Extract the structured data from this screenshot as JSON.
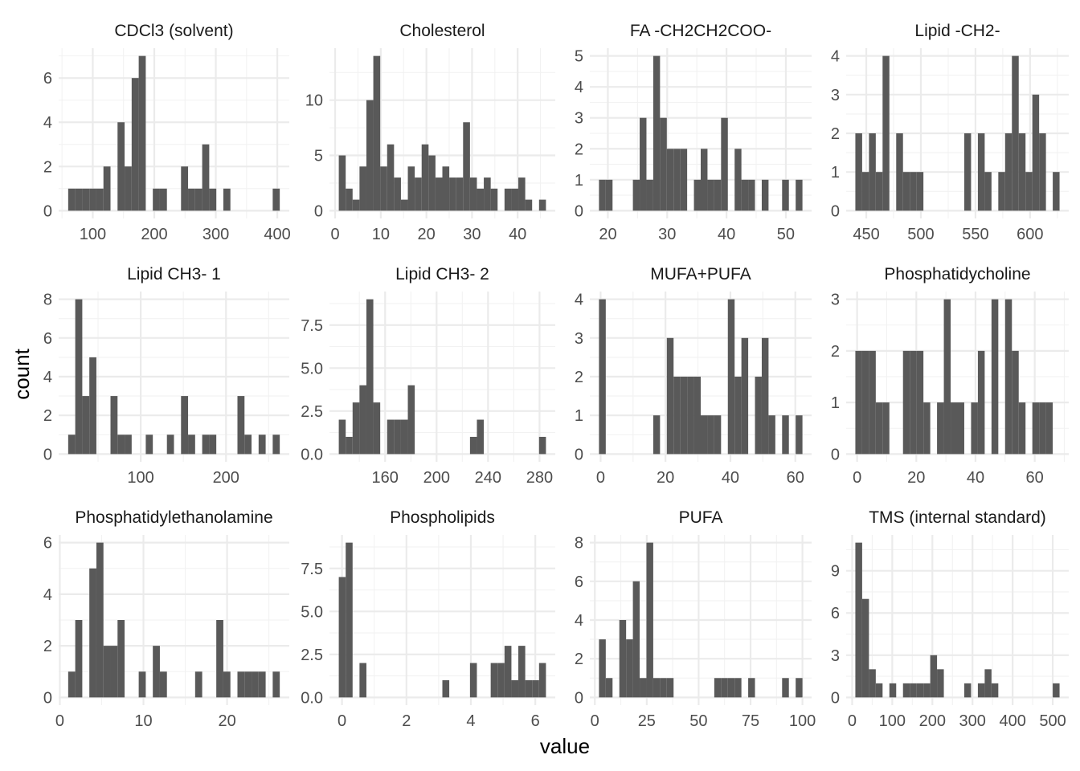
{
  "chart_data": {
    "type": "bar",
    "subtype": "faceted-histogram",
    "bins": 30,
    "xlabel": "value",
    "ylabel": "count",
    "grid": true,
    "scales": "free",
    "bar_color": "#595959",
    "layout": {
      "columns": 4,
      "rows": 3
    },
    "facets": [
      {
        "title": "CDCl3 (solvent)",
        "xrange": [
          60,
          404
        ],
        "xticks": [
          100,
          200,
          300,
          400
        ],
        "xticklabels": [
          "100",
          "200",
          "300",
          "400"
        ],
        "yticks": [
          0,
          2,
          4,
          6
        ],
        "yticklabels": [
          "0",
          "2",
          "4",
          "6"
        ],
        "ymax": 7,
        "counts": [
          1,
          1,
          1,
          1,
          1,
          2,
          0,
          4,
          2,
          6,
          7,
          0,
          1,
          1,
          0,
          0,
          2,
          1,
          1,
          3,
          1,
          0,
          1,
          0,
          0,
          0,
          0,
          0,
          0,
          1
        ]
      },
      {
        "title": "Cholesterol",
        "xrange": [
          0.8,
          46.2
        ],
        "xticks": [
          0,
          10,
          20,
          30,
          40
        ],
        "xticklabels": [
          "0",
          "10",
          "20",
          "30",
          "40"
        ],
        "yticks": [
          0,
          5,
          10
        ],
        "yticklabels": [
          "0",
          "5",
          "10"
        ],
        "ymax": 14,
        "counts": [
          5,
          2,
          1,
          4,
          10,
          14,
          4,
          6,
          3,
          1,
          4,
          3,
          6,
          5,
          3,
          4,
          3,
          3,
          8,
          3,
          2,
          3,
          2,
          0,
          2,
          2,
          3,
          1,
          0,
          1
        ]
      },
      {
        "title": "FA -CH2CH2COO-",
        "xrange": [
          18.5,
          52.8
        ],
        "xticks": [
          20,
          30,
          40,
          50
        ],
        "xticklabels": [
          "20",
          "30",
          "40",
          "50"
        ],
        "yticks": [
          0,
          1,
          2,
          3,
          4,
          5
        ],
        "yticklabels": [
          "0",
          "1",
          "2",
          "3",
          "4",
          "5"
        ],
        "ymax": 5,
        "counts": [
          1,
          1,
          0,
          0,
          0,
          1,
          3,
          1,
          5,
          3,
          2,
          2,
          2,
          0,
          1,
          2,
          1,
          1,
          3,
          0,
          2,
          1,
          1,
          0,
          1,
          0,
          0,
          1,
          0,
          1
        ]
      },
      {
        "title": "Lipid -CH2-",
        "xrange": [
          440,
          627
        ],
        "xticks": [
          450,
          500,
          550,
          600
        ],
        "xticklabels": [
          "450",
          "500",
          "550",
          "600"
        ],
        "yticks": [
          0,
          1,
          2,
          3,
          4
        ],
        "yticklabels": [
          "0",
          "1",
          "2",
          "3",
          "4"
        ],
        "ymax": 4,
        "counts": [
          2,
          1,
          2,
          1,
          4,
          0,
          2,
          1,
          1,
          1,
          0,
          0,
          0,
          0,
          0,
          0,
          2,
          0,
          2,
          1,
          0,
          1,
          2,
          4,
          2,
          1,
          3,
          2,
          0,
          1
        ]
      },
      {
        "title": "Lipid CH3- 1",
        "xrange": [
          15,
          263
        ],
        "xticks": [
          100,
          200
        ],
        "xticklabels": [
          "100",
          "200"
        ],
        "yticks": [
          0,
          2,
          4,
          6,
          8
        ],
        "yticklabels": [
          "0",
          "2",
          "4",
          "6",
          "8"
        ],
        "ymax": 8,
        "counts": [
          1,
          8,
          3,
          5,
          0,
          0,
          3,
          1,
          1,
          0,
          0,
          1,
          0,
          0,
          1,
          0,
          3,
          1,
          0,
          1,
          1,
          0,
          0,
          0,
          3,
          1,
          0,
          1,
          0,
          1
        ]
      },
      {
        "title": "Lipid CH3- 2",
        "xrange": [
          124,
          285
        ],
        "xticks": [
          160,
          200,
          240,
          280
        ],
        "xticklabels": [
          "160",
          "200",
          "240",
          "280"
        ],
        "yticks": [
          0,
          2.5,
          5,
          7.5
        ],
        "yticklabels": [
          "0.0",
          "2.5",
          "5.0",
          "7.5"
        ],
        "ymax": 9,
        "counts": [
          2,
          1,
          3,
          4,
          9,
          3,
          0,
          2,
          2,
          2,
          4,
          0,
          0,
          0,
          0,
          0,
          0,
          0,
          0,
          1,
          2,
          0,
          0,
          0,
          0,
          0,
          0,
          0,
          0,
          1
        ]
      },
      {
        "title": "MUFA+PUFA",
        "xrange": [
          -0.5,
          62.2
        ],
        "xticks": [
          0,
          20,
          40,
          60
        ],
        "xticklabels": [
          "0",
          "20",
          "40",
          "60"
        ],
        "yticks": [
          0,
          1,
          2,
          3,
          4
        ],
        "yticklabels": [
          "0",
          "1",
          "2",
          "3",
          "4"
        ],
        "ymax": 4,
        "counts": [
          4,
          0,
          0,
          0,
          0,
          0,
          0,
          0,
          1,
          0,
          3,
          2,
          2,
          2,
          2,
          1,
          1,
          1,
          0,
          4,
          2,
          3,
          0,
          2,
          3,
          1,
          0,
          1,
          0,
          1
        ]
      },
      {
        "title": "Phosphatidycholine",
        "xrange": [
          -0.6,
          68.4
        ],
        "xticks": [
          0,
          20,
          40,
          60
        ],
        "xticklabels": [
          "0",
          "20",
          "40",
          "60"
        ],
        "yticks": [
          0,
          1,
          2,
          3
        ],
        "yticklabels": [
          "0",
          "1",
          "2",
          "3"
        ],
        "ymax": 3,
        "counts": [
          2,
          2,
          2,
          1,
          1,
          0,
          0,
          2,
          2,
          2,
          1,
          0,
          1,
          3,
          1,
          1,
          0,
          1,
          2,
          0,
          3,
          0,
          3,
          2,
          1,
          0,
          1,
          1,
          1,
          0
        ]
      },
      {
        "title": "Phosphatidylethanolamine",
        "xrange": [
          1.0,
          26.3
        ],
        "xticks": [
          0,
          10,
          20
        ],
        "xticklabels": [
          "0",
          "10",
          "20"
        ],
        "yticks": [
          0,
          2,
          4,
          6
        ],
        "yticklabels": [
          "0",
          "2",
          "4",
          "6"
        ],
        "ymax": 6,
        "counts": [
          1,
          3,
          0,
          5,
          6,
          2,
          2,
          3,
          0,
          0,
          1,
          0,
          2,
          1,
          0,
          0,
          0,
          0,
          1,
          0,
          0,
          3,
          1,
          0,
          1,
          1,
          1,
          1,
          0,
          1
        ]
      },
      {
        "title": "Phospholipids",
        "xrange": [
          -0.1,
          6.33
        ],
        "xticks": [
          0,
          2,
          4,
          6
        ],
        "xticklabels": [
          "0",
          "2",
          "4",
          "6"
        ],
        "yticks": [
          0,
          2.5,
          5,
          7.5
        ],
        "yticklabels": [
          "0.0",
          "2.5",
          "5.0",
          "7.5"
        ],
        "ymax": 9,
        "counts": [
          7,
          9,
          0,
          2,
          0,
          0,
          0,
          0,
          0,
          0,
          0,
          0,
          0,
          0,
          0,
          1,
          0,
          0,
          0,
          2,
          0,
          0,
          2,
          2,
          3,
          1,
          3,
          1,
          1,
          2
        ]
      },
      {
        "title": "PUFA",
        "xrange": [
          2.0,
          100.0
        ],
        "xticks": [
          0,
          25,
          50,
          75,
          100
        ],
        "xticklabels": [
          "0",
          "25",
          "50",
          "75",
          "100"
        ],
        "yticks": [
          0,
          2,
          4,
          6,
          8
        ],
        "yticklabels": [
          "0",
          "2",
          "4",
          "6",
          "8"
        ],
        "ymax": 8,
        "counts": [
          3,
          1,
          0,
          4,
          3,
          6,
          1,
          8,
          1,
          1,
          1,
          0,
          0,
          0,
          0,
          0,
          0,
          1,
          1,
          1,
          1,
          0,
          1,
          0,
          0,
          0,
          0,
          1,
          0,
          1
        ]
      },
      {
        "title": "TMS (internal standard)",
        "xrange": [
          8,
          517
        ],
        "xticks": [
          0,
          100,
          200,
          300,
          400,
          500
        ],
        "xticklabels": [
          "0",
          "100",
          "200",
          "300",
          "400",
          "500"
        ],
        "yticks": [
          0,
          3,
          6,
          9
        ],
        "yticklabels": [
          "0",
          "3",
          "6",
          "9"
        ],
        "ymax": 11,
        "counts": [
          11,
          7,
          2,
          1,
          0,
          1,
          0,
          1,
          1,
          1,
          1,
          3,
          2,
          0,
          0,
          0,
          1,
          0,
          1,
          2,
          1,
          0,
          0,
          0,
          0,
          0,
          0,
          0,
          0,
          1
        ]
      }
    ]
  }
}
